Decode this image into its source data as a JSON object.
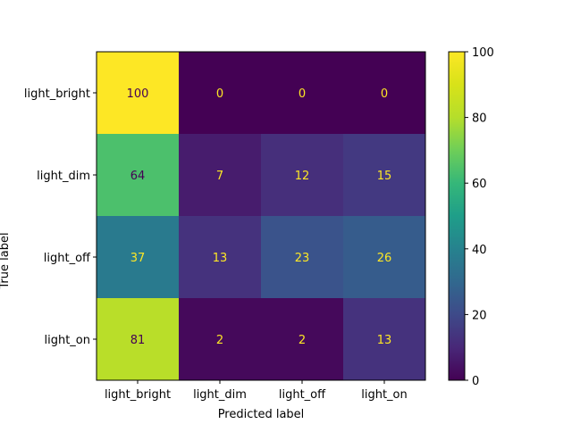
{
  "chart_data": {
    "type": "heatmap",
    "title": "",
    "xlabel": "Predicted label",
    "ylabel": "True label",
    "x_categories": [
      "light_bright",
      "light_dim",
      "light_off",
      "light_on"
    ],
    "y_categories": [
      "light_bright",
      "light_dim",
      "light_off",
      "light_on"
    ],
    "values": [
      [
        100,
        0,
        0,
        0
      ],
      [
        64,
        7,
        12,
        15
      ],
      [
        37,
        13,
        23,
        26
      ],
      [
        81,
        2,
        2,
        13
      ]
    ],
    "colormap": "viridis",
    "vmin": 0,
    "vmax": 100,
    "colorbar_ticks": [
      0,
      20,
      40,
      60,
      80,
      100
    ],
    "text_color_dark": "#440154",
    "text_color_light": "#fde725",
    "grid": false
  }
}
